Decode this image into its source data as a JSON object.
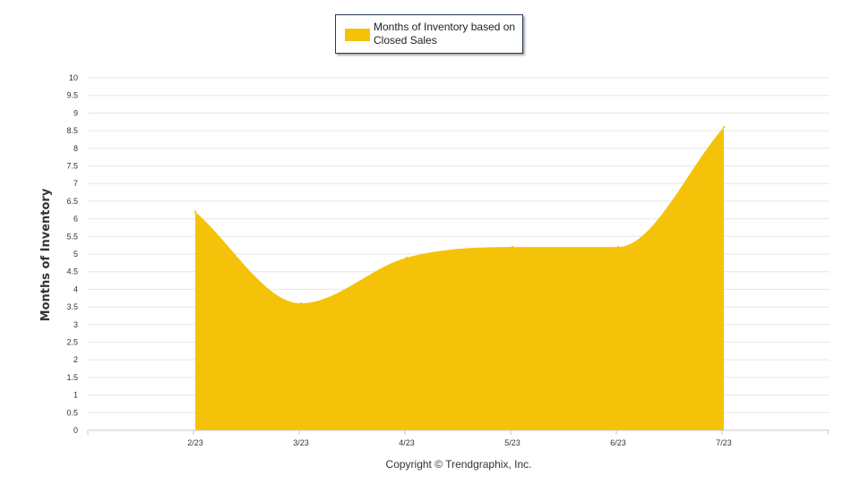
{
  "chart_data": {
    "type": "area",
    "title": "",
    "xlabel": "",
    "ylabel": "Months of Inventory",
    "categories": [
      "2/23",
      "3/23",
      "4/23",
      "5/23",
      "6/23",
      "7/23"
    ],
    "series": [
      {
        "name": "Months of Inventory based on Closed Sales",
        "values": [
          6.2,
          3.6,
          4.9,
          5.2,
          5.2,
          8.6
        ],
        "color": "#f5c20a"
      }
    ],
    "ylim": [
      0,
      10
    ],
    "yticks": [
      "0",
      "0.5",
      "1",
      "1.5",
      "2",
      "2.5",
      "3",
      "3.5",
      "4",
      "4.5",
      "5",
      "5.5",
      "6",
      "6.5",
      "7",
      "7.5",
      "8",
      "8.5",
      "9",
      "9.5",
      "10"
    ],
    "grid": true,
    "smooth": true,
    "legend_position": "top-center"
  },
  "footer": {
    "copyright": "Copyright © Trendgraphix, Inc."
  },
  "colors": {
    "series": "#f5c20a",
    "grid": "#e6e6e6",
    "axis": "#c8c8c8",
    "text": "#333333"
  }
}
